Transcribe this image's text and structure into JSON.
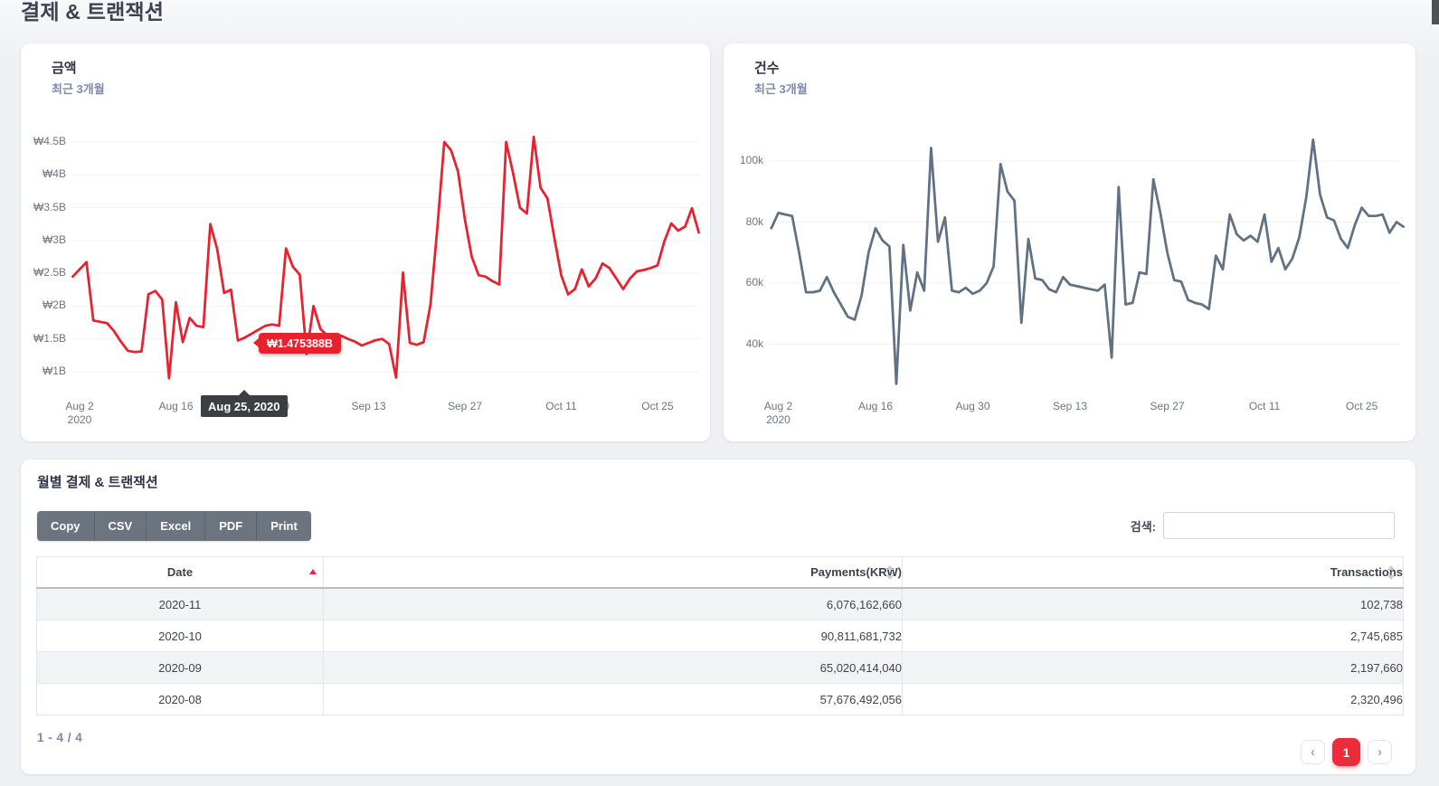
{
  "page": {
    "title": "결제 & 트랜잭션"
  },
  "colors": {
    "chart_red": "#e8212e",
    "chart_slate": "#5f7183",
    "accent_red": "#ee2b3b",
    "grid": "#f1f2f4"
  },
  "cards": {
    "amount": {
      "title": "금액",
      "subtitle": "최근 3개월"
    },
    "count": {
      "title": "건수",
      "subtitle": "최근 3개월"
    }
  },
  "chart_data": [
    {
      "type": "line",
      "title": "금액",
      "subtitle": "최근 3개월",
      "x_start": "2020-08-01",
      "x_interval": "day",
      "grid": "horizontal",
      "legend": "none",
      "y_ticks": [
        "₩4.5B",
        "₩4B",
        "₩3.5B",
        "₩3B",
        "₩2.5B",
        "₩2B",
        "₩1.5B",
        "₩1B"
      ],
      "y_tick_values": [
        4.5,
        4.0,
        3.5,
        3.0,
        2.5,
        2.0,
        1.5,
        1.0
      ],
      "x_tick_labels": [
        "Aug 2",
        "Aug 16",
        "Aug 30",
        "Sep 13",
        "Sep 27",
        "Oct 11",
        "Oct 25"
      ],
      "x_tick_sublabels": [
        "2020",
        "",
        "",
        "",
        "",
        "",
        ""
      ],
      "x_tick_day_index": [
        1,
        15,
        29,
        43,
        57,
        71,
        85
      ],
      "series": [
        {
          "name": "Payments",
          "unit": "KRW billions",
          "color": "#e8212e",
          "values": [
            2.45,
            2.56,
            2.67,
            1.78,
            1.76,
            1.74,
            1.62,
            1.46,
            1.32,
            1.3,
            1.31,
            2.18,
            2.23,
            2.1,
            0.9,
            2.06,
            1.45,
            1.82,
            1.7,
            1.68,
            3.25,
            2.87,
            2.2,
            2.25,
            1.475388,
            1.52,
            1.58,
            1.64,
            1.7,
            1.72,
            1.7,
            2.88,
            2.6,
            2.48,
            1.27,
            2.0,
            1.65,
            1.55,
            1.5,
            1.55,
            1.5,
            1.46,
            1.4,
            1.44,
            1.48,
            1.5,
            1.42,
            0.91,
            2.51,
            1.44,
            1.41,
            1.45,
            2.03,
            3.2,
            4.5,
            4.37,
            4.05,
            3.32,
            2.75,
            2.47,
            2.45,
            2.38,
            2.33,
            4.5,
            4.03,
            3.5,
            3.41,
            4.58,
            3.8,
            3.64,
            3.04,
            2.47,
            2.18,
            2.26,
            2.56,
            2.3,
            2.42,
            2.65,
            2.58,
            2.42,
            2.26,
            2.42,
            2.53,
            2.55,
            2.58,
            2.62,
            2.99,
            3.26,
            3.15,
            3.21,
            3.49,
            3.12
          ]
        }
      ],
      "tooltip": {
        "value_label": "₩1.475388B",
        "x_label": "Aug 25, 2020",
        "day_index": 24
      }
    },
    {
      "type": "line",
      "title": "건수",
      "subtitle": "최근 3개월",
      "x_start": "2020-08-01",
      "x_interval": "day",
      "grid": "horizontal",
      "legend": "none",
      "y_ticks": [
        "100k",
        "80k",
        "60k",
        "40k"
      ],
      "y_tick_values": [
        100,
        80,
        60,
        40
      ],
      "x_tick_labels": [
        "Aug 2",
        "Aug 16",
        "Aug 30",
        "Sep 13",
        "Sep 27",
        "Oct 11",
        "Oct 25"
      ],
      "x_tick_sublabels": [
        "2020",
        "",
        "",
        "",
        "",
        "",
        ""
      ],
      "x_tick_day_index": [
        1,
        15,
        29,
        43,
        57,
        71,
        85
      ],
      "series": [
        {
          "name": "Transactions",
          "unit": "thousands",
          "color": "#5f7183",
          "values": [
            78,
            83,
            82.5,
            82,
            70,
            57,
            57,
            57.5,
            62,
            57,
            53,
            49,
            48,
            56,
            70,
            78,
            74,
            72,
            27,
            72.5,
            51,
            63.5,
            57.5,
            104.3,
            73.5,
            81.5,
            57.5,
            57,
            58.5,
            56.5,
            57.5,
            60,
            65.5,
            99,
            90,
            87,
            47,
            74.5,
            61.5,
            61,
            58,
            57,
            62,
            59.5,
            59,
            58.5,
            58,
            57.5,
            59.5,
            35.6,
            91.5,
            53,
            53.5,
            63.5,
            63,
            94,
            83,
            70,
            61,
            60.5,
            54.5,
            53.5,
            53,
            51.5,
            69,
            64.5,
            82.5,
            76,
            74,
            75.5,
            73.5,
            82.5,
            67,
            71.5,
            64.5,
            68,
            75,
            88,
            107,
            89,
            81.5,
            80.5,
            74.5,
            71.5,
            79,
            84.7,
            82,
            82,
            82.5,
            76.5,
            80,
            78.5
          ]
        }
      ]
    }
  ],
  "table": {
    "section_title": "월별 결제 & 트랜잭션",
    "buttons": [
      "Copy",
      "CSV",
      "Excel",
      "PDF",
      "Print"
    ],
    "search_label": "검색:",
    "search_value": "",
    "columns": [
      {
        "label": "Date",
        "sort": "asc",
        "align": "center"
      },
      {
        "label": "Payments(KRW)",
        "sort": "none",
        "align": "right"
      },
      {
        "label": "Transactions",
        "sort": "none",
        "align": "right"
      }
    ],
    "rows": [
      [
        "2020-11",
        "6,076,162,660",
        "102,738"
      ],
      [
        "2020-10",
        "90,811,681,732",
        "2,745,685"
      ],
      [
        "2020-09",
        "65,020,414,040",
        "2,197,660"
      ],
      [
        "2020-08",
        "57,676,492,056",
        "2,320,496"
      ]
    ],
    "footer": {
      "range_text": "1 - 4 / 4",
      "prev_icon": "‹",
      "next_icon": "›",
      "active_page": "1"
    }
  }
}
